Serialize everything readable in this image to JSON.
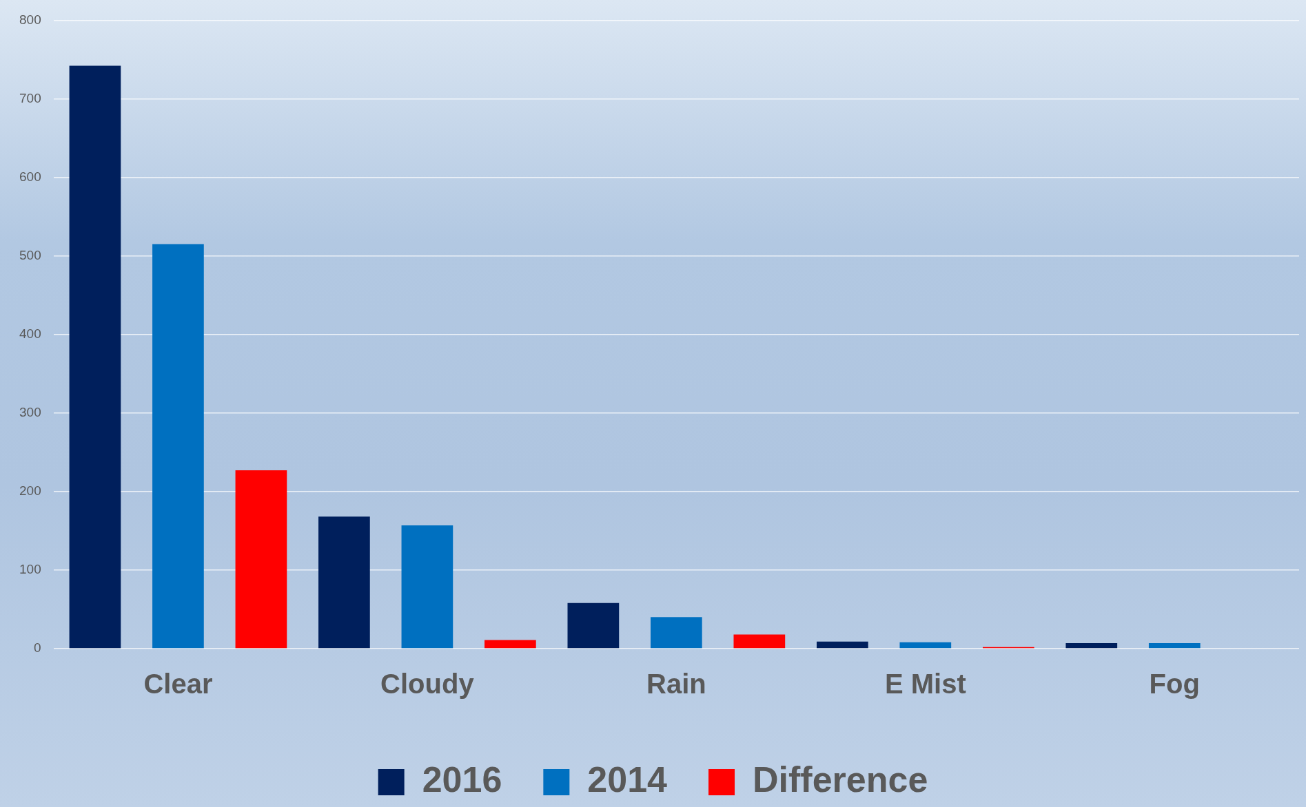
{
  "chart_data": {
    "type": "bar",
    "categories": [
      "Clear",
      "Cloudy",
      "Rain",
      "E Mist",
      "Fog"
    ],
    "series": [
      {
        "name": "2016",
        "color": "#001f5c",
        "values": [
          742,
          168,
          58,
          9,
          7
        ]
      },
      {
        "name": "2014",
        "color": "#0070c0",
        "values": [
          515,
          157,
          40,
          8,
          7
        ]
      },
      {
        "name": "Difference",
        "color": "#ff0000",
        "values": [
          227,
          11,
          18,
          2,
          0
        ]
      }
    ],
    "ylim": [
      0,
      800
    ],
    "yticks": [
      0,
      100,
      200,
      300,
      400,
      500,
      600,
      700,
      800
    ],
    "grid": "y",
    "legend": "bottom"
  }
}
